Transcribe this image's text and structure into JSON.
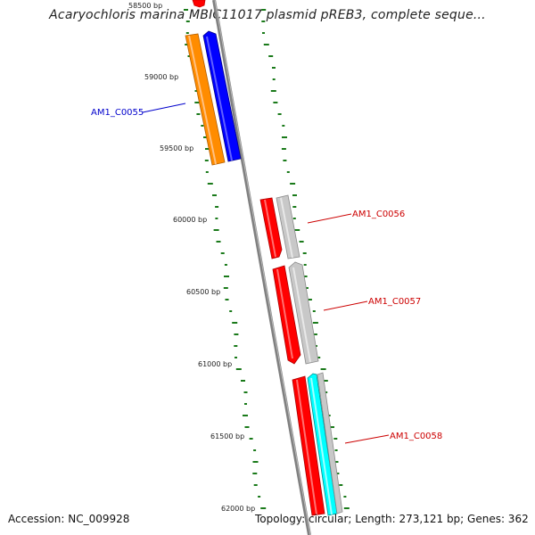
{
  "title": "Acaryochloris marina MBIC11017 plasmid pREB3, complete seque...",
  "footer": {
    "accession": "Accession: NC_009928",
    "summary": "Topology: circular; Length: 273,121 bp; Genes: 362"
  },
  "ticks": [
    {
      "label": "58500 bp"
    },
    {
      "label": "59000 bp"
    },
    {
      "label": "59500 bp"
    },
    {
      "label": "60000 bp"
    },
    {
      "label": "60500 bp"
    },
    {
      "label": "61000 bp"
    },
    {
      "label": "61500 bp"
    },
    {
      "label": "62000 bp"
    }
  ],
  "genes": [
    {
      "label": "AM1_C0055",
      "color": "#0000cc"
    },
    {
      "label": "AM1_C0056",
      "color": "#cc0000"
    },
    {
      "label": "AM1_C0057",
      "color": "#cc0000"
    },
    {
      "label": "AM1_C0058",
      "color": "#cc0000"
    }
  ],
  "colors": {
    "orange": "#ff8c00",
    "blue": "#0000ff",
    "red": "#ff0000",
    "gray": "#c0c0c0",
    "cyan": "#00ffff",
    "dots": "#1a7a1a",
    "backbone": "#808080"
  }
}
